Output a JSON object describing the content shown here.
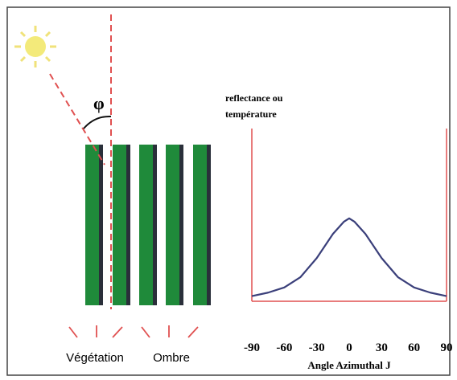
{
  "diagram": {
    "angle_symbol": "φ",
    "labels": {
      "vegetation": "Végétation",
      "shadow": "Ombre"
    }
  },
  "chart_data": {
    "type": "line",
    "y_label": [
      "reflectance ou",
      "température"
    ],
    "x_label": "Angle Azimuthal J",
    "x": [
      -90,
      -75,
      -60,
      -45,
      -30,
      -15,
      -5,
      0,
      5,
      15,
      30,
      45,
      60,
      75,
      90
    ],
    "series": [
      {
        "color": "#3a3f7a",
        "values": [
          0.03,
          0.05,
          0.08,
          0.14,
          0.25,
          0.39,
          0.46,
          0.48,
          0.46,
          0.39,
          0.25,
          0.14,
          0.08,
          0.05,
          0.03
        ]
      }
    ],
    "xlim": [
      -90,
      90
    ],
    "xticks": [
      -90,
      -60,
      -30,
      0,
      30,
      60,
      90
    ],
    "ylim": [
      0,
      1
    ]
  }
}
